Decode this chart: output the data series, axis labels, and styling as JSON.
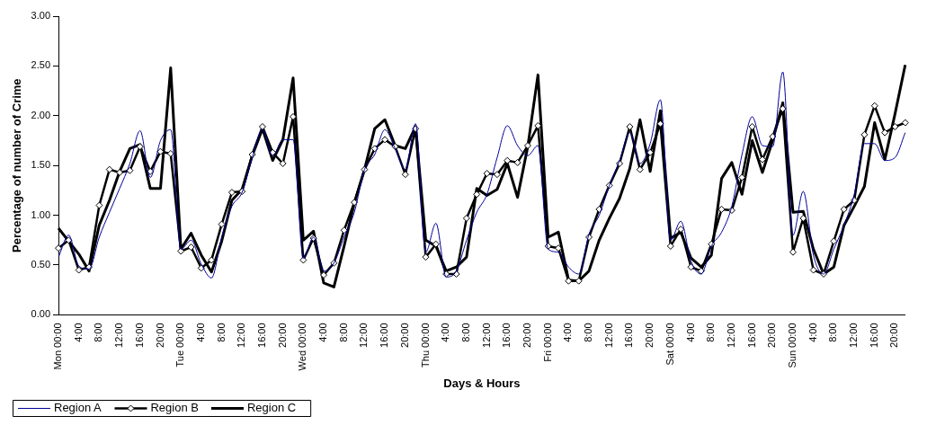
{
  "chart_data": {
    "type": "line",
    "xlabel": "Days & Hours",
    "ylabel": "Percentage of number of Crime",
    "categories": [
      "Mon 00:00",
      null,
      "4:00",
      null,
      "8:00",
      null,
      "12:00",
      null,
      "16:00",
      null,
      "20:00",
      null,
      "Tue 00:00",
      null,
      "4:00",
      null,
      "8:00",
      null,
      "12:00",
      null,
      "16:00",
      null,
      "20:00",
      null,
      "Wed 00:00",
      null,
      "4:00",
      null,
      "8:00",
      null,
      "12:00",
      null,
      "16:00",
      null,
      "20:00",
      null,
      "Thu 00:00",
      null,
      "4:00",
      null,
      "8:00",
      null,
      "12:00",
      null,
      "16:00",
      null,
      "20:00",
      null,
      "Fri 00:00",
      null,
      "4:00",
      null,
      "8:00",
      null,
      "12:00",
      null,
      "16:00",
      null,
      "20:00",
      null,
      "Sat 00:00",
      null,
      "4:00",
      null,
      "8:00",
      null,
      "12:00",
      null,
      "16:00",
      null,
      "20:00",
      null,
      "Sun 00:00",
      null,
      "4:00",
      null,
      "8:00",
      null,
      "12:00",
      null,
      "16:00",
      null,
      "20:00",
      null
    ],
    "series": [
      {
        "name": "Region A",
        "color": "#000099",
        "marker": "none",
        "values": [
          0.58,
          0.8,
          0.49,
          0.46,
          0.78,
          1.03,
          1.27,
          1.52,
          1.85,
          1.38,
          1.75,
          1.86,
          0.66,
          0.75,
          0.51,
          0.37,
          0.78,
          1.09,
          1.23,
          1.58,
          1.86,
          1.6,
          1.76,
          1.76,
          0.57,
          0.78,
          0.44,
          0.52,
          0.78,
          1.03,
          1.46,
          1.61,
          1.86,
          1.67,
          1.46,
          1.92,
          0.63,
          0.92,
          0.38,
          0.44,
          0.75,
          1.03,
          1.21,
          1.58,
          1.9,
          1.7,
          1.6,
          1.7,
          0.66,
          0.63,
          0.48,
          0.41,
          0.81,
          1.0,
          1.3,
          1.55,
          1.83,
          1.52,
          1.72,
          2.16,
          0.75,
          0.94,
          0.54,
          0.41,
          0.69,
          0.83,
          1.09,
          1.61,
          1.99,
          1.7,
          1.69,
          2.44,
          0.8,
          1.24,
          0.6,
          0.41,
          0.66,
          0.9,
          1.21,
          1.72,
          1.72,
          1.55,
          1.58,
          1.83
        ]
      },
      {
        "name": "Region B",
        "color": "#000000",
        "marker": "diamond",
        "values": [
          0.67,
          0.75,
          0.45,
          0.48,
          1.1,
          1.46,
          1.43,
          1.45,
          1.69,
          1.44,
          1.64,
          1.62,
          0.64,
          0.68,
          0.47,
          0.55,
          0.91,
          1.23,
          1.24,
          1.61,
          1.89,
          1.63,
          1.52,
          1.99,
          0.55,
          0.77,
          0.4,
          0.52,
          0.85,
          1.13,
          1.46,
          1.67,
          1.76,
          1.69,
          1.41,
          1.87,
          0.58,
          0.71,
          0.41,
          0.41,
          0.97,
          1.21,
          1.42,
          1.41,
          1.55,
          1.53,
          1.7,
          1.9,
          0.69,
          0.67,
          0.34,
          0.34,
          0.78,
          1.06,
          1.3,
          1.52,
          1.89,
          1.46,
          1.63,
          1.92,
          0.69,
          0.86,
          0.48,
          0.44,
          0.71,
          1.06,
          1.05,
          1.38,
          1.89,
          1.56,
          1.79,
          2.07,
          0.63,
          0.97,
          0.45,
          0.41,
          0.74,
          1.06,
          1.15,
          1.81,
          2.1,
          1.83,
          1.89,
          1.93
        ]
      },
      {
        "name": "Region C",
        "color": "#000000",
        "marker": "none",
        "values": [
          0.87,
          0.74,
          0.61,
          0.44,
          0.9,
          1.15,
          1.44,
          1.67,
          1.71,
          1.27,
          1.27,
          2.48,
          0.66,
          0.82,
          0.6,
          0.43,
          0.74,
          1.15,
          1.26,
          1.6,
          1.87,
          1.55,
          1.76,
          2.38,
          0.75,
          0.84,
          0.32,
          0.28,
          0.69,
          1.12,
          1.46,
          1.87,
          1.96,
          1.7,
          1.67,
          1.89,
          0.75,
          0.69,
          0.44,
          0.48,
          0.58,
          1.27,
          1.2,
          1.26,
          1.52,
          1.18,
          1.69,
          2.41,
          0.78,
          0.83,
          0.35,
          0.34,
          0.44,
          0.75,
          0.97,
          1.17,
          1.47,
          1.96,
          1.44,
          2.05,
          0.77,
          0.83,
          0.57,
          0.48,
          0.6,
          1.37,
          1.53,
          1.21,
          1.75,
          1.43,
          1.75,
          2.13,
          1.03,
          1.04,
          0.66,
          0.41,
          0.48,
          0.9,
          1.09,
          1.29,
          1.93,
          1.56,
          2.02,
          2.51
        ]
      }
    ],
    "ylim": [
      0,
      3
    ],
    "yticks": [
      {
        "value": 0,
        "label": "0.00"
      },
      {
        "value": 0.5,
        "label": "0.50"
      },
      {
        "value": 1,
        "label": "1.00"
      },
      {
        "value": 1.5,
        "label": "1.50"
      },
      {
        "value": 2,
        "label": "2.00"
      },
      {
        "value": 2.5,
        "label": "2.50"
      },
      {
        "value": 3,
        "label": "3.00"
      }
    ],
    "grid": false,
    "legend": "bottom left"
  }
}
